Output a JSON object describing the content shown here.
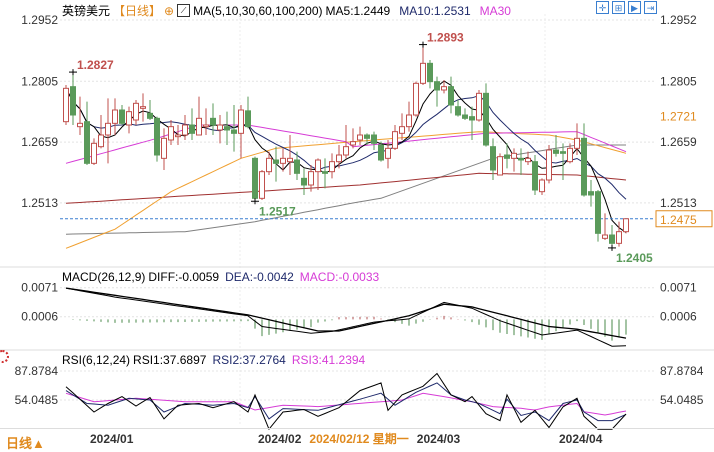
{
  "header": {
    "symbol": "英镑美元",
    "period": "【日线】",
    "ma_spec": "MA(5,10,30,60,100,200)",
    "ma5": "MA5:1.2449",
    "ma10": "MA10:1.2531",
    "ma30": "MA30"
  },
  "toolbar_icons": [
    "crosshair-icon",
    "candle-type-icon",
    "play-icon",
    "export-icon"
  ],
  "macd_header": {
    "spec": "MACD(26,12,9)",
    "diff": "DIFF:-0.0059",
    "dea": "DEA:-0.0042",
    "macd": "MACD:-0.0033"
  },
  "rsi_header": {
    "spec": "RSI(6,12,24)",
    "rsi1": "RSI1:37.6897",
    "rsi2": "RSI2:37.2764",
    "rsi3": "RSI3:41.2394"
  },
  "bottom": {
    "period_button": "日线▲",
    "cursor_date": "2024/02/12 星期一"
  },
  "colors": {
    "up": "#c0504d",
    "down": "#5a9a5a",
    "ma5": "#000000",
    "ma10": "#1f2a6b",
    "ma30": "#d63cd6",
    "ma60": "#f0a030",
    "ma100": "#a03030",
    "ma200": "#808080",
    "current": "#e08a1e",
    "accent": "#e08a1e"
  },
  "chart_data": [
    {
      "type": "candlestick",
      "title": "英镑美元",
      "x_tick_labels": [
        {
          "index": 4,
          "label": "2024/01"
        },
        {
          "index": 28,
          "label": "2024/02"
        },
        {
          "index": 50,
          "label": "2024/03"
        },
        {
          "index": 71,
          "label": "2024/04"
        }
      ],
      "y_tick_labels": [
        "1.2952",
        "1.2805",
        "1.2659",
        "1.2513"
      ],
      "y_ticks": [
        1.2952,
        1.2805,
        1.2659,
        1.2513
      ],
      "current_price": {
        "label": "1.2475",
        "value": 1.2475
      },
      "extra_label": {
        "label": "1.2721",
        "value": 1.2721
      },
      "annotations": [
        {
          "label": "1.2827",
          "index": 2,
          "value": 1.2827,
          "kind": "high"
        },
        {
          "label": "1.2517",
          "index": 28,
          "value": 1.2517,
          "kind": "low"
        },
        {
          "label": "1.2893",
          "index": 52,
          "value": 1.2893,
          "kind": "high"
        },
        {
          "label": "1.2405",
          "index": 79,
          "value": 1.2405,
          "kind": "low"
        }
      ],
      "ohlc": [
        [
          1.2708,
          1.2796,
          1.27,
          1.2788
        ],
        [
          1.2792,
          1.2827,
          1.27,
          1.2724
        ],
        [
          1.2696,
          1.2768,
          1.2676,
          1.2704
        ],
        [
          1.2708,
          1.2756,
          1.2604,
          1.2608
        ],
        [
          1.2608,
          1.2668,
          1.2604,
          1.2656
        ],
        [
          1.2648,
          1.2724,
          1.2644,
          1.2676
        ],
        [
          1.2676,
          1.2764,
          1.2608,
          1.2704
        ],
        [
          1.2704,
          1.2764,
          1.2676,
          1.2736
        ],
        [
          1.2736,
          1.2748,
          1.27,
          1.2704
        ],
        [
          1.27,
          1.2744,
          1.268,
          1.2732
        ],
        [
          1.2712,
          1.276,
          1.27,
          1.2752
        ],
        [
          1.274,
          1.2776,
          1.2708,
          1.2744
        ],
        [
          1.2728,
          1.276,
          1.2712,
          1.2716
        ],
        [
          1.2716,
          1.272,
          1.2612,
          1.2628
        ],
        [
          1.262,
          1.2692,
          1.2592,
          1.2668
        ],
        [
          1.2664,
          1.2712,
          1.2652,
          1.2696
        ],
        [
          1.2672,
          1.27,
          1.2652,
          1.2676
        ],
        [
          1.2676,
          1.2724,
          1.2664,
          1.27
        ],
        [
          1.27,
          1.274,
          1.2664,
          1.268
        ],
        [
          1.2676,
          1.2768,
          1.2676,
          1.2716
        ],
        [
          1.2696,
          1.274,
          1.2676,
          1.27
        ],
        [
          1.2716,
          1.2752,
          1.2676,
          1.27
        ],
        [
          1.2688,
          1.2724,
          1.2656,
          1.27
        ],
        [
          1.2696,
          1.2732,
          1.2652,
          1.2688
        ],
        [
          1.2688,
          1.2748,
          1.2636,
          1.268
        ],
        [
          1.268,
          1.2748,
          1.262,
          1.2736
        ],
        [
          1.2734,
          1.2768,
          1.2692,
          1.2696
        ],
        [
          1.262,
          1.2624,
          1.2517,
          1.2524
        ],
        [
          1.2524,
          1.2592,
          1.252,
          1.2588
        ],
        [
          1.2588,
          1.2636,
          1.258,
          1.262
        ],
        [
          1.2616,
          1.2648,
          1.2564,
          1.2608
        ],
        [
          1.2608,
          1.2644,
          1.2588,
          1.262
        ],
        [
          1.2612,
          1.2676,
          1.258,
          1.262
        ],
        [
          1.2616,
          1.2636,
          1.2568,
          1.2584
        ],
        [
          1.2572,
          1.2596,
          1.2532,
          1.2556
        ],
        [
          1.2556,
          1.2604,
          1.254,
          1.2588
        ],
        [
          1.2588,
          1.262,
          1.2544,
          1.2616
        ],
        [
          1.2588,
          1.262,
          1.2548,
          1.2584
        ],
        [
          1.2588,
          1.2632,
          1.2572,
          1.2612
        ],
        [
          1.2612,
          1.2652,
          1.2596,
          1.2628
        ],
        [
          1.2628,
          1.27,
          1.262,
          1.2648
        ],
        [
          1.2652,
          1.2692,
          1.2644,
          1.266
        ],
        [
          1.2664,
          1.2696,
          1.2652,
          1.2676
        ],
        [
          1.2676,
          1.268,
          1.2652,
          1.2668
        ],
        [
          1.2676,
          1.2684,
          1.264,
          1.2656
        ],
        [
          1.2652,
          1.266,
          1.2612,
          1.2616
        ],
        [
          1.262,
          1.2664,
          1.2596,
          1.2644
        ],
        [
          1.2644,
          1.27,
          1.264,
          1.2684
        ],
        [
          1.268,
          1.2728,
          1.2664,
          1.2696
        ],
        [
          1.2696,
          1.2756,
          1.2684,
          1.2724
        ],
        [
          1.2724,
          1.2804,
          1.272,
          1.28
        ],
        [
          1.28,
          1.2893,
          1.2796,
          1.2848
        ],
        [
          1.2848,
          1.2856,
          1.2788,
          1.2804
        ],
        [
          1.2804,
          1.2816,
          1.2744,
          1.2784
        ],
        [
          1.2784,
          1.2808,
          1.2776,
          1.2792
        ],
        [
          1.2792,
          1.2816,
          1.2728,
          1.2748
        ],
        [
          1.2744,
          1.276,
          1.272,
          1.2724
        ],
        [
          1.2724,
          1.274,
          1.2712,
          1.2716
        ],
        [
          1.272,
          1.2744,
          1.2664,
          1.2712
        ],
        [
          1.2712,
          1.2784,
          1.2708,
          1.2776
        ],
        [
          1.2776,
          1.28,
          1.2648,
          1.2652
        ],
        [
          1.2648,
          1.2668,
          1.2568,
          1.2592
        ],
        [
          1.258,
          1.2632,
          1.258,
          1.2624
        ],
        [
          1.2628,
          1.2656,
          1.2596,
          1.262
        ],
        [
          1.262,
          1.2644,
          1.2588,
          1.2632
        ],
        [
          1.262,
          1.2644,
          1.258,
          1.2616
        ],
        [
          1.2612,
          1.2636,
          1.2604,
          1.262
        ],
        [
          1.2612,
          1.2628,
          1.2532,
          1.2544
        ],
        [
          1.254,
          1.2572,
          1.2532,
          1.2568
        ],
        [
          1.2568,
          1.2652,
          1.256,
          1.264
        ],
        [
          1.264,
          1.2676,
          1.2624,
          1.2632
        ],
        [
          1.2636,
          1.2656,
          1.2568,
          1.2632
        ],
        [
          1.2612,
          1.2656,
          1.2608,
          1.2644
        ],
        [
          1.2644,
          1.2704,
          1.2628,
          1.2668
        ],
        [
          1.2668,
          1.2704,
          1.2528,
          1.2532
        ],
        [
          1.254,
          1.2568,
          1.2504,
          1.2532
        ],
        [
          1.254,
          1.2544,
          1.242,
          1.244
        ],
        [
          1.2428,
          1.2488,
          1.2424,
          1.2436
        ],
        [
          1.2436,
          1.246,
          1.2405,
          1.2416
        ],
        [
          1.2416,
          1.2468,
          1.2408,
          1.2444
        ],
        [
          1.2444,
          1.2472,
          1.244,
          1.2475
        ]
      ],
      "ma_lines": {
        "ma30": [
          [
            1,
            1.2608
          ],
          [
            14,
            1.2668
          ],
          [
            20,
            1.27
          ],
          [
            27,
            1.27
          ],
          [
            41,
            1.266
          ],
          [
            42,
            1.2648
          ],
          [
            61,
            1.268
          ],
          [
            74,
            1.2684
          ],
          [
            81,
            1.2636
          ]
        ],
        "ma60": [
          [
            1,
            1.2404
          ],
          [
            8,
            1.245
          ],
          [
            16,
            1.254
          ],
          [
            26,
            1.262
          ],
          [
            31,
            1.2644
          ],
          [
            42,
            1.266
          ],
          [
            60,
            1.2684
          ],
          [
            70,
            1.2676
          ],
          [
            74,
            1.2664
          ],
          [
            81,
            1.2632
          ]
        ],
        "ma100": [
          [
            1,
            1.2512
          ],
          [
            43,
            1.2556
          ],
          [
            60,
            1.2584
          ],
          [
            74,
            1.258
          ],
          [
            81,
            1.2568
          ]
        ],
        "ma200": [
          [
            1,
            1.2438
          ],
          [
            18,
            1.2444
          ],
          [
            28,
            1.2468
          ],
          [
            43,
            1.2516
          ],
          [
            46,
            1.2524
          ],
          [
            62,
            1.262
          ],
          [
            74,
            1.2652
          ],
          [
            81,
            1.2652
          ]
        ]
      }
    },
    {
      "type": "line",
      "title": "MACD(26,12,9)",
      "y_tick_labels": [
        "0.0071",
        "0.0006"
      ],
      "y_ticks": [
        0.0071,
        0.0006
      ],
      "diff": [
        [
          1,
          0.007
        ],
        [
          8,
          0.005
        ],
        [
          27,
          0.0008
        ],
        [
          29,
          -0.0016
        ],
        [
          36,
          -0.0031
        ],
        [
          39,
          -0.0027
        ],
        [
          45,
          -0.0006
        ],
        [
          50,
          0.0001
        ],
        [
          55,
          0.0038
        ],
        [
          59,
          0.0025
        ],
        [
          63,
          -0.0003
        ],
        [
          69,
          -0.0035
        ],
        [
          74,
          -0.0024
        ],
        [
          79,
          -0.006
        ],
        [
          81,
          -0.0059
        ]
      ],
      "dea": [
        [
          1,
          0.007
        ],
        [
          11,
          0.0047
        ],
        [
          27,
          0.001
        ],
        [
          37,
          -0.0026
        ],
        [
          40,
          -0.0026
        ],
        [
          50,
          0.0008
        ],
        [
          55,
          0.0034
        ],
        [
          59,
          0.0028
        ],
        [
          70,
          -0.0016
        ],
        [
          74,
          -0.0022
        ],
        [
          81,
          -0.0042
        ]
      ]
    },
    {
      "type": "line",
      "title": "RSI(6,12,24)",
      "y_tick_labels": [
        "87.8784",
        "54.0485"
      ],
      "y_ticks": [
        87.8784,
        54.0485
      ],
      "rsi1": [
        [
          1,
          69.6
        ],
        [
          3,
          55
        ],
        [
          5,
          40
        ],
        [
          7,
          50
        ],
        [
          9,
          58
        ],
        [
          11,
          47
        ],
        [
          13,
          57
        ],
        [
          15,
          32
        ],
        [
          17,
          48
        ],
        [
          20,
          50
        ],
        [
          22,
          45
        ],
        [
          25,
          52
        ],
        [
          27,
          40
        ],
        [
          28,
          60
        ],
        [
          30,
          20
        ],
        [
          32,
          40
        ],
        [
          35,
          43
        ],
        [
          37,
          35
        ],
        [
          40,
          45
        ],
        [
          43,
          65
        ],
        [
          46,
          74
        ],
        [
          47,
          42
        ],
        [
          49,
          60
        ],
        [
          52,
          70
        ],
        [
          54,
          85
        ],
        [
          56,
          60
        ],
        [
          58,
          52
        ],
        [
          59,
          58
        ],
        [
          61,
          38
        ],
        [
          63,
          30
        ],
        [
          64,
          60
        ],
        [
          66,
          28
        ],
        [
          68,
          42
        ],
        [
          70,
          22
        ],
        [
          72,
          46
        ],
        [
          74,
          56
        ],
        [
          75,
          35
        ],
        [
          77,
          20
        ],
        [
          79,
          20
        ],
        [
          81,
          37.69
        ]
      ],
      "rsi2": [
        [
          1,
          65
        ],
        [
          4,
          50
        ],
        [
          7,
          48
        ],
        [
          10,
          56
        ],
        [
          13,
          54
        ],
        [
          15,
          40
        ],
        [
          18,
          50
        ],
        [
          22,
          48
        ],
        [
          25,
          50
        ],
        [
          27,
          45
        ],
        [
          28,
          58
        ],
        [
          30,
          32
        ],
        [
          32,
          44
        ],
        [
          37,
          42
        ],
        [
          43,
          55
        ],
        [
          46,
          62
        ],
        [
          48,
          48
        ],
        [
          51,
          63
        ],
        [
          54,
          74
        ],
        [
          56,
          60
        ],
        [
          58,
          54
        ],
        [
          60,
          50
        ],
        [
          61,
          46
        ],
        [
          63,
          38
        ],
        [
          64,
          55
        ],
        [
          66,
          36
        ],
        [
          68,
          40
        ],
        [
          70,
          30
        ],
        [
          72,
          50
        ],
        [
          74,
          54
        ],
        [
          75,
          40
        ],
        [
          77,
          30
        ],
        [
          79,
          30
        ],
        [
          81,
          37.28
        ]
      ],
      "rsi3": [
        [
          1,
          61.8
        ],
        [
          5,
          52
        ],
        [
          11,
          56
        ],
        [
          18,
          52
        ],
        [
          25,
          52
        ],
        [
          28,
          42.4
        ],
        [
          32,
          48
        ],
        [
          37,
          46.3
        ],
        [
          46,
          52
        ],
        [
          49,
          54
        ],
        [
          52,
          61.8
        ],
        [
          55,
          58
        ],
        [
          59,
          52
        ],
        [
          62,
          46.3
        ],
        [
          66,
          44.3
        ],
        [
          68,
          42.4
        ],
        [
          70,
          46
        ],
        [
          74,
          50
        ],
        [
          75,
          40.4
        ],
        [
          78,
          36.5
        ],
        [
          81,
          41.24
        ]
      ]
    }
  ]
}
